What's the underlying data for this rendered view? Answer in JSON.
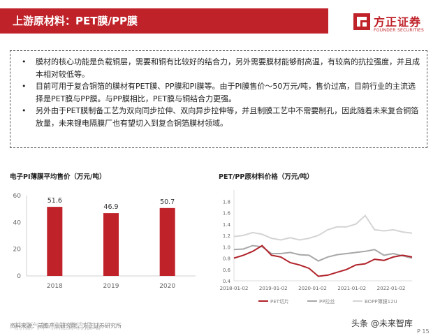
{
  "header": {
    "title": "上游原材料：PET膜/PP膜",
    "logo_brand": "方正证券",
    "logo_sub": "FOUNDER SECURITIES",
    "accent_color": "#c0222a"
  },
  "bullets": [
    "膜材的核心功能是负载铜层，需要和铜有比较好的结合力，另外需要膜材能够耐高温，有较高的抗拉强度，并且成本相对较低等。",
    "目前可用于复合铜箔的膜材有PET膜、PP膜和PI膜等。由于PI膜售价～50万元/吨，售价过高，目前行业的主流选择是PET膜与PP膜。与PP膜相比，PET膜与铜结合力更强。",
    "另外由于PET膜制备工艺为双向同步拉伸、双向异步拉伸等，并且制膜工艺中不需要制孔，因此随着未来复合铜箔放量，未来锂电隔膜厂也有望切入到复合铜箔膜材领域。"
  ],
  "chart_data": [
    {
      "type": "bar",
      "title": "电子PI薄膜平均售价（万元/吨）",
      "categories": [
        "2018",
        "2019",
        "2020"
      ],
      "values": [
        51.6,
        46.9,
        50.7
      ],
      "data_labels": [
        "51.6",
        "46.9",
        "50.7"
      ],
      "ylim": [
        0,
        60
      ],
      "yticks": [
        "0",
        "20",
        "40",
        "60"
      ],
      "bar_color": "#c0222a",
      "grid": false
    },
    {
      "type": "line",
      "title": "PET/PP原材料价格（万元/吨）",
      "ylim": [
        0.4,
        2.0
      ],
      "yticks": [
        "0.4",
        "0.6",
        "0.8",
        "1.0",
        "1.2",
        "1.4",
        "1.6",
        "1.8"
      ],
      "xticks": [
        "2018-01-02",
        "2019-01-02",
        "2020-01-02",
        "2021-01-02",
        "2022-01-02"
      ],
      "legend_position": "bottom",
      "grid": false,
      "x": [
        "2018-01",
        "2018-04",
        "2018-07",
        "2018-10",
        "2019-01",
        "2019-04",
        "2019-07",
        "2019-10",
        "2020-01",
        "2020-04",
        "2020-07",
        "2020-10",
        "2021-01",
        "2021-04",
        "2021-07",
        "2021-10",
        "2022-01",
        "2022-04",
        "2022-07",
        "2022-10"
      ],
      "series": [
        {
          "name": "PET切片",
          "color": "#b0222a",
          "values": [
            0.8,
            0.85,
            0.92,
            1.02,
            0.85,
            0.82,
            0.72,
            0.68,
            0.62,
            0.48,
            0.5,
            0.55,
            0.6,
            0.68,
            0.7,
            0.78,
            0.76,
            0.82,
            0.85,
            0.82
          ]
        },
        {
          "name": "PP拉丝",
          "color": "#a8a8a8",
          "values": [
            0.95,
            0.96,
            1.02,
            1.0,
            0.88,
            0.88,
            0.9,
            0.86,
            0.85,
            0.75,
            0.82,
            0.86,
            0.88,
            0.9,
            0.92,
            0.95,
            0.85,
            0.88,
            0.84,
            0.8
          ]
        },
        {
          "name": "BOPP薄膜12U",
          "color": "#d4d4d4",
          "values": [
            1.18,
            1.2,
            1.25,
            1.22,
            1.15,
            1.12,
            1.16,
            1.12,
            1.15,
            1.2,
            1.3,
            1.35,
            1.35,
            1.4,
            1.55,
            1.3,
            1.28,
            1.3,
            1.26,
            1.24
          ]
        }
      ]
    }
  ],
  "footer": {
    "left": "资料来源：前瞻产业研究院，方正证券研究所",
    "watermark": "前沿汽车·新能源情报站",
    "right": "头条 @未来智库",
    "page": "P 15"
  }
}
